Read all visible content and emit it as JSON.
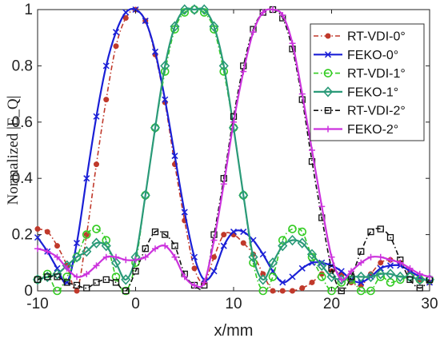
{
  "chart_data": {
    "type": "line",
    "xlabel": "x/mm",
    "ylabel": "Normalized |E_Q|",
    "xlim": [
      -10,
      30
    ],
    "ylim": [
      0,
      1
    ],
    "x_ticks": [
      "-10",
      "0",
      "10",
      "20",
      "30"
    ],
    "y_ticks": [
      "0",
      "0.2",
      "0.4",
      "0.6",
      "0.8",
      "1"
    ],
    "grid": false,
    "legend_position": "top-right",
    "series": [
      {
        "name": "RT-VDI-0°",
        "color": "#c0392b",
        "marker": "dot",
        "dash": "dashdot",
        "x": [
          -10,
          -9,
          -8,
          -7,
          -6,
          -5,
          -4,
          -3,
          -2,
          -1,
          0,
          1,
          2,
          3,
          4,
          5,
          6,
          7,
          8,
          9,
          10,
          11,
          12,
          13,
          14,
          15,
          16,
          17,
          18,
          19,
          20,
          21,
          22,
          23,
          24,
          25,
          26,
          27,
          28,
          29,
          30
        ],
        "values": [
          0.22,
          0.21,
          0.16,
          0.09,
          0.0,
          0.2,
          0.45,
          0.68,
          0.87,
          0.97,
          1.0,
          0.96,
          0.84,
          0.67,
          0.45,
          0.25,
          0.08,
          0.03,
          0.12,
          0.2,
          0.2,
          0.17,
          0.13,
          0.06,
          0.0,
          0.0,
          0.0,
          0.01,
          0.03,
          0.06,
          0.07,
          0.06,
          0.03,
          0.02,
          0.06,
          0.1,
          0.11,
          0.1,
          0.07,
          0.04,
          0.03
        ]
      },
      {
        "name": "FEKO-0°",
        "color": "#1a1fd6",
        "marker": "x",
        "dash": "solid",
        "x": [
          -10,
          -9,
          -8,
          -7,
          -6,
          -5,
          -4,
          -3,
          -2,
          -1,
          0,
          1,
          2,
          3,
          4,
          5,
          6,
          7,
          8,
          9,
          10,
          11,
          12,
          13,
          14,
          15,
          16,
          17,
          18,
          19,
          20,
          21,
          22,
          23,
          24,
          25,
          26,
          27,
          28,
          29,
          30
        ],
        "values": [
          0.19,
          0.14,
          0.08,
          0.03,
          0.17,
          0.4,
          0.62,
          0.8,
          0.92,
          0.99,
          1.0,
          0.96,
          0.85,
          0.68,
          0.48,
          0.28,
          0.12,
          0.04,
          0.07,
          0.16,
          0.21,
          0.21,
          0.18,
          0.13,
          0.07,
          0.03,
          0.05,
          0.08,
          0.1,
          0.1,
          0.09,
          0.07,
          0.04,
          0.03,
          0.05,
          0.08,
          0.09,
          0.09,
          0.07,
          0.05,
          0.03
        ]
      },
      {
        "name": "RT-VDI-1°",
        "color": "#33cc22",
        "marker": "circle",
        "dash": "dashdot",
        "x": [
          -10,
          -9,
          -8,
          -7,
          -6,
          -5,
          -4,
          -3,
          -2,
          -1,
          0,
          1,
          2,
          3,
          4,
          5,
          6,
          7,
          8,
          9,
          10,
          11,
          12,
          13,
          14,
          15,
          16,
          17,
          18,
          19,
          20,
          21,
          22,
          23,
          24,
          25,
          26,
          27,
          28,
          29,
          30
        ],
        "values": [
          0.04,
          0.06,
          0.0,
          0.05,
          0.12,
          0.2,
          0.22,
          0.18,
          0.05,
          0.0,
          0.1,
          0.34,
          0.58,
          0.78,
          0.93,
          0.99,
          1.0,
          0.99,
          0.93,
          0.78,
          0.58,
          0.34,
          0.1,
          0.0,
          0.05,
          0.18,
          0.22,
          0.21,
          0.12,
          0.05,
          0.0,
          0.03,
          0.04,
          0.0,
          0.0,
          0.05,
          0.03,
          0.04,
          0.05,
          0.04,
          0.04
        ]
      },
      {
        "name": "FEKO-1°",
        "color": "#2a9a78",
        "marker": "diamond",
        "dash": "solid",
        "x": [
          -10,
          -9,
          -8,
          -7,
          -6,
          -5,
          -4,
          -3,
          -2,
          -1,
          0,
          1,
          2,
          3,
          4,
          5,
          6,
          7,
          8,
          9,
          10,
          11,
          12,
          13,
          14,
          15,
          16,
          17,
          18,
          19,
          20,
          21,
          22,
          23,
          24,
          25,
          26,
          27,
          28,
          29,
          30
        ],
        "values": [
          0.04,
          0.05,
          0.06,
          0.09,
          0.12,
          0.14,
          0.17,
          0.16,
          0.1,
          0.04,
          0.12,
          0.34,
          0.58,
          0.8,
          0.94,
          1.0,
          1.0,
          1.0,
          0.94,
          0.8,
          0.58,
          0.34,
          0.12,
          0.04,
          0.1,
          0.16,
          0.18,
          0.17,
          0.13,
          0.09,
          0.05,
          0.04,
          0.05,
          0.05,
          0.05,
          0.06,
          0.06,
          0.05,
          0.05,
          0.04,
          0.04
        ]
      },
      {
        "name": "RT-VDI-2°",
        "color": "#111111",
        "marker": "square",
        "dash": "dashdot",
        "x": [
          -10,
          -9,
          -8,
          -7,
          -6,
          -5,
          -4,
          -3,
          -2,
          -1,
          0,
          1,
          2,
          3,
          4,
          5,
          6,
          7,
          8,
          9,
          10,
          11,
          12,
          13,
          14,
          15,
          16,
          17,
          18,
          19,
          20,
          21,
          22,
          23,
          24,
          25,
          26,
          27,
          28,
          29,
          30
        ],
        "values": [
          0.04,
          0.05,
          0.05,
          0.03,
          0.02,
          0.01,
          0.03,
          0.04,
          0.03,
          0.0,
          0.07,
          0.15,
          0.21,
          0.2,
          0.16,
          0.06,
          0.02,
          0.02,
          0.2,
          0.4,
          0.62,
          0.8,
          0.93,
          0.99,
          1.0,
          0.97,
          0.86,
          0.68,
          0.46,
          0.26,
          0.08,
          0.0,
          0.05,
          0.14,
          0.21,
          0.22,
          0.19,
          0.11,
          0.04,
          0.01,
          0.04
        ]
      },
      {
        "name": "FEKO-2°",
        "color": "#cc33dd",
        "marker": "plus",
        "dash": "solid",
        "x": [
          -10,
          -9,
          -8,
          -7,
          -6,
          -5,
          -4,
          -3,
          -2,
          -1,
          0,
          1,
          2,
          3,
          4,
          5,
          6,
          7,
          8,
          9,
          10,
          11,
          12,
          13,
          14,
          15,
          16,
          17,
          18,
          19,
          20,
          21,
          22,
          23,
          24,
          25,
          26,
          27,
          28,
          29,
          30
        ],
        "values": [
          0.15,
          0.14,
          0.12,
          0.08,
          0.05,
          0.06,
          0.09,
          0.12,
          0.12,
          0.11,
          0.11,
          0.12,
          0.15,
          0.16,
          0.12,
          0.05,
          0.02,
          0.03,
          0.18,
          0.38,
          0.6,
          0.78,
          0.92,
          0.99,
          1.0,
          0.98,
          0.88,
          0.7,
          0.5,
          0.3,
          0.12,
          0.04,
          0.07,
          0.1,
          0.12,
          0.12,
          0.11,
          0.1,
          0.08,
          0.06,
          0.05
        ]
      }
    ]
  }
}
